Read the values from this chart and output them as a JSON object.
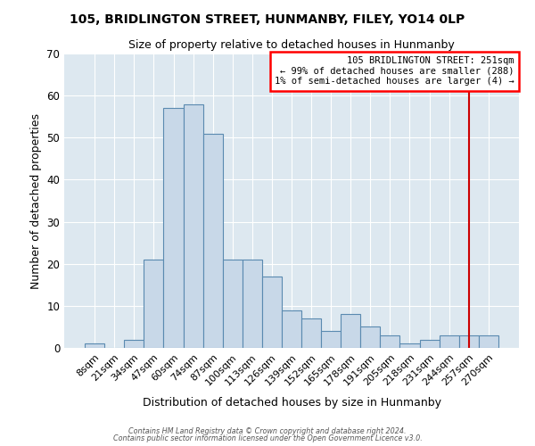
{
  "title": "105, BRIDLINGTON STREET, HUNMANBY, FILEY, YO14 0LP",
  "subtitle": "Size of property relative to detached houses in Hunmanby",
  "xlabel": "Distribution of detached houses by size in Hunmanby",
  "ylabel": "Number of detached properties",
  "categories": [
    "8sqm",
    "21sqm",
    "34sqm",
    "47sqm",
    "60sqm",
    "74sqm",
    "87sqm",
    "100sqm",
    "113sqm",
    "126sqm",
    "139sqm",
    "152sqm",
    "165sqm",
    "178sqm",
    "191sqm",
    "205sqm",
    "218sqm",
    "231sqm",
    "244sqm",
    "257sqm",
    "270sqm"
  ],
  "values": [
    1,
    0,
    2,
    21,
    57,
    58,
    51,
    21,
    21,
    17,
    9,
    7,
    4,
    8,
    5,
    3,
    1,
    2,
    3,
    3,
    3
  ],
  "bar_color": "#c8d8e8",
  "bar_edge_color": "#5a8ab0",
  "background_color": "#dde8f0",
  "grid_color": "#ffffff",
  "ylim": [
    0,
    70
  ],
  "yticks": [
    0,
    10,
    20,
    30,
    40,
    50,
    60,
    70
  ],
  "property_label": "105 BRIDLINGTON STREET: 251sqm",
  "annotation_line1": "← 99% of detached houses are smaller (288)",
  "annotation_line2": "1% of semi-detached houses are larger (4) →",
  "vline_x_label": "257sqm",
  "vline_color": "#cc0000",
  "footnote1": "Contains HM Land Registry data © Crown copyright and database right 2024.",
  "footnote2": "Contains public sector information licensed under the Open Government Licence v3.0."
}
